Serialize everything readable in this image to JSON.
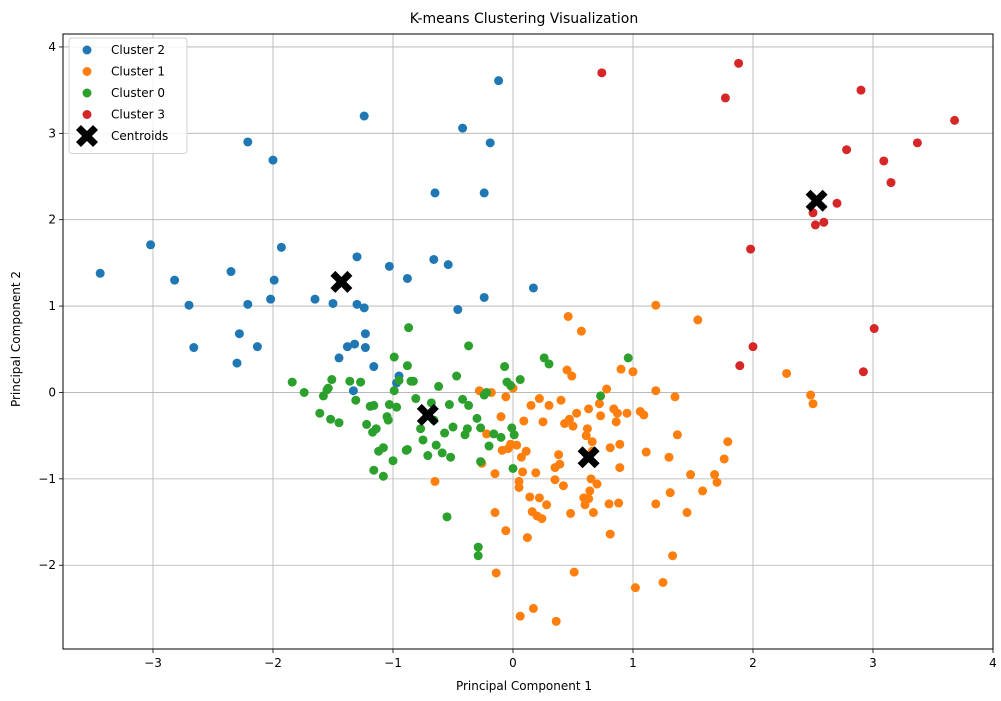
{
  "chart_data": {
    "type": "scatter",
    "title": "K-means Clustering Visualization",
    "xlabel": "Principal Component 1",
    "ylabel": "Principal Component 2",
    "xlim": [
      -3.75,
      4.0
    ],
    "ylim": [
      -2.97,
      4.15
    ],
    "xticks": [
      -3,
      -2,
      -1,
      0,
      1,
      2,
      3,
      4
    ],
    "yticks": [
      -2,
      -1,
      0,
      1,
      2,
      3,
      4
    ],
    "xtick_labels": [
      "−3",
      "−2",
      "−1",
      "0",
      "1",
      "2",
      "3",
      "4"
    ],
    "ytick_labels": [
      "−2",
      "−1",
      "0",
      "1",
      "2",
      "3",
      "4"
    ],
    "grid": true,
    "legend_position": "top-left",
    "series": [
      {
        "name": "Cluster 2",
        "color": "#1f77b4",
        "points": [
          [
            -3.44,
            1.38
          ],
          [
            -3.02,
            1.71
          ],
          [
            -2.82,
            1.3
          ],
          [
            -2.7,
            1.01
          ],
          [
            -2.66,
            0.52
          ],
          [
            -2.35,
            1.4
          ],
          [
            -2.3,
            0.34
          ],
          [
            -2.28,
            0.68
          ],
          [
            -2.21,
            2.9
          ],
          [
            -2.21,
            1.02
          ],
          [
            -2.13,
            0.53
          ],
          [
            -2.02,
            1.08
          ],
          [
            -2.0,
            2.69
          ],
          [
            -1.99,
            1.3
          ],
          [
            -1.93,
            1.68
          ],
          [
            -1.65,
            1.08
          ],
          [
            -1.5,
            1.03
          ],
          [
            -1.45,
            0.4
          ],
          [
            -1.38,
            0.53
          ],
          [
            -1.33,
            0.02
          ],
          [
            -1.32,
            0.56
          ],
          [
            -1.3,
            1.57
          ],
          [
            -1.3,
            1.02
          ],
          [
            -1.24,
            3.2
          ],
          [
            -1.24,
            0.98
          ],
          [
            -1.23,
            0.68
          ],
          [
            -1.23,
            0.52
          ],
          [
            -1.16,
            0.3
          ],
          [
            -1.03,
            1.46
          ],
          [
            -0.97,
            0.11
          ],
          [
            -0.95,
            0.19
          ],
          [
            -0.88,
            1.32
          ],
          [
            -0.65,
            2.31
          ],
          [
            -0.66,
            1.54
          ],
          [
            -0.54,
            1.48
          ],
          [
            -0.46,
            0.96
          ],
          [
            -0.42,
            3.06
          ],
          [
            -0.24,
            1.1
          ],
          [
            -0.24,
            2.31
          ],
          [
            -0.19,
            2.89
          ],
          [
            -0.12,
            3.61
          ],
          [
            0.17,
            1.21
          ]
        ]
      },
      {
        "name": "Cluster 1",
        "color": "#ff7f0e",
        "points": [
          [
            -0.65,
            -1.03
          ],
          [
            -0.28,
            0.02
          ],
          [
            -0.26,
            -0.82
          ],
          [
            -0.22,
            -0.48
          ],
          [
            -0.18,
            0.0
          ],
          [
            -0.15,
            -0.94
          ],
          [
            -0.15,
            -1.39
          ],
          [
            -0.14,
            -2.09
          ],
          [
            -0.1,
            -0.28
          ],
          [
            -0.09,
            -0.67
          ],
          [
            -0.06,
            -0.05
          ],
          [
            -0.06,
            -1.6
          ],
          [
            -0.04,
            -0.65
          ],
          [
            -0.02,
            -0.6
          ],
          [
            0.0,
            0.05
          ],
          [
            0.03,
            -0.61
          ],
          [
            0.05,
            -1.03
          ],
          [
            0.05,
            -1.1
          ],
          [
            0.06,
            -2.59
          ],
          [
            0.07,
            -0.75
          ],
          [
            0.08,
            -0.92
          ],
          [
            0.09,
            -0.33
          ],
          [
            0.11,
            -0.68
          ],
          [
            0.12,
            -1.68
          ],
          [
            0.14,
            -1.21
          ],
          [
            0.15,
            -0.15
          ],
          [
            0.16,
            -1.38
          ],
          [
            0.17,
            -2.5
          ],
          [
            0.19,
            -0.93
          ],
          [
            0.2,
            -1.43
          ],
          [
            0.22,
            -1.22
          ],
          [
            0.22,
            -0.07
          ],
          [
            0.24,
            -1.46
          ],
          [
            0.25,
            -0.34
          ],
          [
            0.28,
            -1.3
          ],
          [
            0.3,
            -0.15
          ],
          [
            0.35,
            -0.87
          ],
          [
            0.35,
            -1.01
          ],
          [
            0.36,
            -2.65
          ],
          [
            0.38,
            -0.72
          ],
          [
            0.39,
            -0.83
          ],
          [
            0.4,
            -0.09
          ],
          [
            0.42,
            -1.08
          ],
          [
            0.43,
            -0.36
          ],
          [
            0.45,
            0.26
          ],
          [
            0.46,
            0.88
          ],
          [
            0.47,
            -0.31
          ],
          [
            0.48,
            -1.4
          ],
          [
            0.49,
            0.19
          ],
          [
            0.5,
            -0.39
          ],
          [
            0.51,
            -2.08
          ],
          [
            0.53,
            -0.24
          ],
          [
            0.57,
            0.71
          ],
          [
            0.59,
            -1.22
          ],
          [
            0.6,
            -1.3
          ],
          [
            0.61,
            -0.5
          ],
          [
            0.62,
            -0.42
          ],
          [
            0.63,
            -1.23
          ],
          [
            0.63,
            -0.19
          ],
          [
            0.64,
            -1.14
          ],
          [
            0.65,
            -1.0
          ],
          [
            0.66,
            -0.57
          ],
          [
            0.66,
            -0.68
          ],
          [
            0.67,
            -1.39
          ],
          [
            0.7,
            -1.06
          ],
          [
            0.72,
            -0.13
          ],
          [
            0.73,
            -0.27
          ],
          [
            0.78,
            0.04
          ],
          [
            0.8,
            -1.29
          ],
          [
            0.81,
            -0.64
          ],
          [
            0.81,
            -1.64
          ],
          [
            0.84,
            -0.19
          ],
          [
            0.86,
            -0.34
          ],
          [
            0.87,
            -0.24
          ],
          [
            0.88,
            -1.28
          ],
          [
            0.89,
            -0.6
          ],
          [
            0.89,
            -0.87
          ],
          [
            0.9,
            0.27
          ],
          [
            0.95,
            -0.24
          ],
          [
            1.0,
            0.24
          ],
          [
            1.02,
            -2.26
          ],
          [
            1.06,
            -0.22
          ],
          [
            1.09,
            -0.26
          ],
          [
            1.11,
            -0.69
          ],
          [
            1.19,
            1.01
          ],
          [
            1.19,
            0.02
          ],
          [
            1.19,
            -1.29
          ],
          [
            1.25,
            -2.2
          ],
          [
            1.3,
            -0.75
          ],
          [
            1.31,
            -1.16
          ],
          [
            1.33,
            -1.89
          ],
          [
            1.35,
            -0.05
          ],
          [
            1.37,
            -0.49
          ],
          [
            1.45,
            -1.39
          ],
          [
            1.48,
            -0.95
          ],
          [
            1.54,
            0.84
          ],
          [
            1.58,
            -1.14
          ],
          [
            1.68,
            -0.95
          ],
          [
            1.7,
            -1.04
          ],
          [
            1.76,
            -0.77
          ],
          [
            1.79,
            -0.57
          ],
          [
            2.28,
            0.22
          ],
          [
            2.48,
            -0.03
          ],
          [
            2.5,
            -0.13
          ]
        ]
      },
      {
        "name": "Cluster 0",
        "color": "#2ca02c",
        "points": [
          [
            -1.84,
            0.12
          ],
          [
            -1.74,
            0.0
          ],
          [
            -1.61,
            -0.24
          ],
          [
            -1.58,
            -0.04
          ],
          [
            -1.55,
            0.03
          ],
          [
            -1.54,
            0.05
          ],
          [
            -1.52,
            -0.31
          ],
          [
            -1.51,
            0.15
          ],
          [
            -1.45,
            -0.35
          ],
          [
            -1.36,
            0.13
          ],
          [
            -1.31,
            -0.09
          ],
          [
            -1.27,
            0.12
          ],
          [
            -1.22,
            -0.37
          ],
          [
            -1.19,
            -0.16
          ],
          [
            -1.17,
            -0.46
          ],
          [
            -1.16,
            -0.9
          ],
          [
            -1.16,
            -0.15
          ],
          [
            -1.14,
            -0.42
          ],
          [
            -1.12,
            -0.68
          ],
          [
            -1.08,
            -0.97
          ],
          [
            -1.08,
            -0.64
          ],
          [
            -1.05,
            -0.28
          ],
          [
            -1.04,
            -0.32
          ],
          [
            -1.03,
            -0.14
          ],
          [
            -1.0,
            -0.79
          ],
          [
            -0.99,
            0.41
          ],
          [
            -0.99,
            0.02
          ],
          [
            -0.97,
            -0.17
          ],
          [
            -0.95,
            0.14
          ],
          [
            -0.89,
            -0.67
          ],
          [
            -0.88,
            -0.66
          ],
          [
            -0.88,
            0.31
          ],
          [
            -0.87,
            0.75
          ],
          [
            -0.85,
            0.13
          ],
          [
            -0.83,
            0.13
          ],
          [
            -0.81,
            -0.07
          ],
          [
            -0.77,
            -0.42
          ],
          [
            -0.75,
            -0.55
          ],
          [
            -0.71,
            -0.73
          ],
          [
            -0.68,
            -0.12
          ],
          [
            -0.66,
            -0.32
          ],
          [
            -0.64,
            -0.61
          ],
          [
            -0.62,
            0.07
          ],
          [
            -0.59,
            -0.7
          ],
          [
            -0.57,
            -0.47
          ],
          [
            -0.55,
            -1.44
          ],
          [
            -0.53,
            -0.14
          ],
          [
            -0.52,
            -0.75
          ],
          [
            -0.5,
            -0.4
          ],
          [
            -0.47,
            0.19
          ],
          [
            -0.42,
            -0.08
          ],
          [
            -0.4,
            -0.49
          ],
          [
            -0.38,
            -0.42
          ],
          [
            -0.37,
            -0.15
          ],
          [
            -0.37,
            0.54
          ],
          [
            -0.3,
            -0.3
          ],
          [
            -0.29,
            -1.79
          ],
          [
            -0.29,
            -1.89
          ],
          [
            -0.27,
            -0.8
          ],
          [
            -0.27,
            -0.41
          ],
          [
            -0.24,
            -0.03
          ],
          [
            -0.22,
            0.0
          ],
          [
            -0.2,
            -0.62
          ],
          [
            -0.16,
            -0.48
          ],
          [
            -0.1,
            -0.52
          ],
          [
            -0.07,
            0.3
          ],
          [
            -0.05,
            0.12
          ],
          [
            -0.02,
            0.08
          ],
          [
            -0.01,
            -0.41
          ],
          [
            0.0,
            -0.88
          ],
          [
            0.01,
            -0.49
          ],
          [
            0.06,
            0.15
          ],
          [
            0.26,
            0.4
          ],
          [
            0.3,
            0.33
          ],
          [
            0.73,
            -0.04
          ],
          [
            0.96,
            0.4
          ]
        ]
      },
      {
        "name": "Cluster 3",
        "color": "#d62728",
        "points": [
          [
            0.74,
            3.7
          ],
          [
            1.77,
            3.41
          ],
          [
            1.88,
            3.81
          ],
          [
            1.89,
            0.31
          ],
          [
            1.98,
            1.66
          ],
          [
            2.0,
            0.53
          ],
          [
            2.5,
            2.08
          ],
          [
            2.52,
            1.94
          ],
          [
            2.59,
            1.97
          ],
          [
            2.7,
            2.19
          ],
          [
            2.78,
            2.81
          ],
          [
            2.9,
            3.5
          ],
          [
            2.92,
            0.24
          ],
          [
            3.01,
            0.74
          ],
          [
            3.09,
            2.68
          ],
          [
            3.15,
            2.43
          ],
          [
            3.37,
            2.89
          ],
          [
            3.68,
            3.15
          ]
        ]
      }
    ],
    "centroids": {
      "name": "Centroids",
      "color": "#000000",
      "points": [
        [
          -1.43,
          1.28
        ],
        [
          2.53,
          2.22
        ],
        [
          -0.71,
          -0.26
        ],
        [
          0.63,
          -0.75
        ]
      ]
    }
  }
}
